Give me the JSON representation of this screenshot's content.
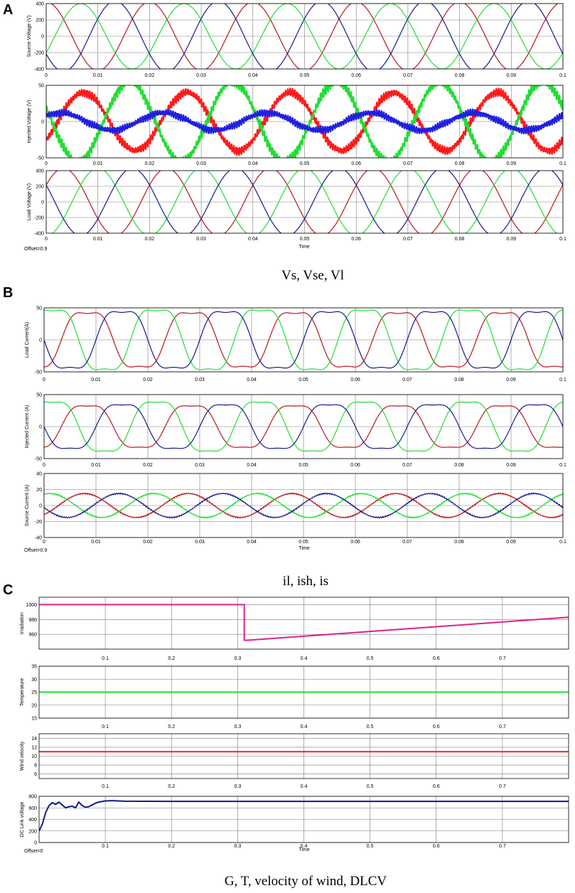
{
  "panels": [
    {
      "letter": "A",
      "caption": "Vs, Vse, Vl",
      "offset_label": "Offset=0.9",
      "xlabel": "Time"
    },
    {
      "letter": "B",
      "caption": "il, ish, is",
      "offset_label": "Offset=0.9",
      "xlabel": "Time"
    },
    {
      "letter": "C",
      "caption": "G, T, velocity of wind, DLCV",
      "offset_label": "Offset=0",
      "xlabel": "Time"
    }
  ],
  "colors": {
    "red": "#b8171c",
    "green": "#22dd33",
    "blue": "#141a8c",
    "magenta": "#e0218a",
    "bright_red": "#ff1a1a",
    "bright_blue": "#1f1fe0"
  },
  "chart_data": [
    {
      "type": "line",
      "ylabel": "Source Voltage (V)",
      "xlim": [
        0,
        0.1
      ],
      "ylim": [
        -400,
        400
      ],
      "yticks": [
        -400,
        -200,
        0,
        200,
        400
      ],
      "xticks": [
        0,
        0.01,
        0.02,
        0.03,
        0.04,
        0.05,
        0.06,
        0.07,
        0.08,
        0.09,
        0.1
      ],
      "series": [
        {
          "color": "red",
          "amplitude": 420,
          "frequency_hz": 50,
          "phase_deg": 90
        },
        {
          "color": "green",
          "amplitude": 400,
          "frequency_hz": 50,
          "phase_deg": -30
        },
        {
          "color": "blue",
          "amplitude": 430,
          "frequency_hz": 50,
          "phase_deg": 210
        }
      ]
    },
    {
      "type": "line",
      "ylabel": "Injected Voltage (V)",
      "xlim": [
        0,
        0.1
      ],
      "ylim": [
        -50,
        50
      ],
      "yticks": [
        -50,
        0,
        50
      ],
      "xticks": [
        0,
        0.01,
        0.02,
        0.03,
        0.04,
        0.05,
        0.06,
        0.07,
        0.08,
        0.09,
        0.1
      ],
      "series": [
        {
          "color": "bright_red",
          "amplitude": 40,
          "frequency_hz": 50,
          "phase_deg": -40,
          "ripple": 6
        },
        {
          "color": "green",
          "amplitude": 55,
          "frequency_hz": 50,
          "phase_deg": 160,
          "ripple": 7
        },
        {
          "color": "bright_blue",
          "amplitude": 12,
          "frequency_hz": 50,
          "phase_deg": 40,
          "ripple": 5
        }
      ]
    },
    {
      "type": "line",
      "ylabel": "Load Voltage (V)",
      "xlim": [
        0,
        0.1
      ],
      "ylim": [
        -400,
        400
      ],
      "yticks": [
        -400,
        -200,
        0,
        200,
        400
      ],
      "xticks": [
        0,
        0.01,
        0.02,
        0.03,
        0.04,
        0.05,
        0.06,
        0.07,
        0.08,
        0.09,
        0.1
      ],
      "series": [
        {
          "color": "red",
          "amplitude": 430,
          "frequency_hz": 50,
          "phase_deg": 30
        },
        {
          "color": "green",
          "amplitude": 430,
          "frequency_hz": 50,
          "phase_deg": -90
        },
        {
          "color": "blue",
          "amplitude": 430,
          "frequency_hz": 50,
          "phase_deg": 150
        }
      ]
    },
    {
      "type": "line",
      "ylabel": "Load Current(A)",
      "xlim": [
        0,
        0.1
      ],
      "ylim": [
        -50,
        50
      ],
      "yticks": [
        -50,
        0,
        50
      ],
      "xticks": [
        0,
        0.01,
        0.02,
        0.03,
        0.04,
        0.05,
        0.06,
        0.07,
        0.08,
        0.09,
        0.1
      ],
      "series": [
        {
          "color": "red",
          "amplitude": 50,
          "frequency_hz": 50,
          "phase_deg": -60,
          "flatten": 0.45
        },
        {
          "color": "green",
          "amplitude": 55,
          "frequency_hz": 50,
          "phase_deg": 60,
          "flatten": 0.45
        },
        {
          "color": "blue",
          "amplitude": 52,
          "frequency_hz": 50,
          "phase_deg": 180,
          "flatten": 0.45
        }
      ]
    },
    {
      "type": "line",
      "ylabel": "Injected Current (A)",
      "xlim": [
        0,
        0.1
      ],
      "ylim": [
        -50,
        50
      ],
      "yticks": [
        -50,
        0,
        50
      ],
      "xticks": [
        0,
        0.01,
        0.02,
        0.03,
        0.04,
        0.05,
        0.06,
        0.07,
        0.08,
        0.09,
        0.1
      ],
      "series": [
        {
          "color": "red",
          "amplitude": 38,
          "frequency_hz": 50,
          "phase_deg": -60,
          "flatten": 0.4
        },
        {
          "color": "green",
          "amplitude": 45,
          "frequency_hz": 50,
          "phase_deg": 60,
          "flatten": 0.4
        },
        {
          "color": "blue",
          "amplitude": 40,
          "frequency_hz": 50,
          "phase_deg": 180,
          "flatten": 0.4
        }
      ]
    },
    {
      "type": "line",
      "ylabel": "Source Current (A)",
      "xlim": [
        0,
        0.1
      ],
      "ylim": [
        -40,
        40
      ],
      "yticks": [
        -40,
        -20,
        0,
        20,
        40
      ],
      "xticks": [
        0,
        0.01,
        0.02,
        0.03,
        0.04,
        0.05,
        0.06,
        0.07,
        0.08,
        0.09,
        0.1
      ],
      "series": [
        {
          "color": "red",
          "amplitude": 15,
          "frequency_hz": 50,
          "phase_deg": -50,
          "ripple": 1
        },
        {
          "color": "green",
          "amplitude": 15,
          "frequency_hz": 50,
          "phase_deg": 70,
          "ripple": 1
        },
        {
          "color": "blue",
          "amplitude": 15,
          "frequency_hz": 50,
          "phase_deg": 190,
          "ripple": 1
        }
      ]
    },
    {
      "type": "line",
      "ylabel": "Irradiation",
      "xlim": [
        0,
        0.8
      ],
      "ylim": [
        940,
        1010
      ],
      "yticks": [
        960,
        980,
        1000
      ],
      "xticks": [
        0.1,
        0.2,
        0.3,
        0.4,
        0.5,
        0.6,
        0.7
      ],
      "series": [
        {
          "color": "magenta",
          "x": [
            0,
            0.31,
            0.31,
            0.315,
            0.8
          ],
          "y": [
            1000,
            1000,
            952,
            952,
            983
          ]
        }
      ]
    },
    {
      "type": "line",
      "ylabel": "Temperature",
      "xlim": [
        0,
        0.8
      ],
      "ylim": [
        15,
        35
      ],
      "yticks": [
        15,
        20,
        25,
        30,
        35
      ],
      "xticks": [
        0.1,
        0.2,
        0.3,
        0.4,
        0.5,
        0.6,
        0.7
      ],
      "series": [
        {
          "color": "green",
          "x": [
            0,
            0.8
          ],
          "y": [
            25,
            25
          ]
        }
      ]
    },
    {
      "type": "line",
      "ylabel": "Wind velocity",
      "xlim": [
        0,
        0.8
      ],
      "ylim": [
        5,
        15
      ],
      "yticks": [
        6,
        8,
        10,
        12,
        14
      ],
      "xticks": [
        0.1,
        0.2,
        0.3,
        0.4,
        0.5,
        0.6,
        0.7
      ],
      "series": [
        {
          "color": "bright_red",
          "x": [
            0,
            0.8
          ],
          "y": [
            11,
            11
          ]
        }
      ]
    },
    {
      "type": "line",
      "ylabel": "DC Link voltage",
      "xlim": [
        0,
        0.8
      ],
      "ylim": [
        0,
        800
      ],
      "yticks": [
        0,
        200,
        400,
        600,
        800
      ],
      "xticks": [
        0.1,
        0.2,
        0.3,
        0.4,
        0.5,
        0.6,
        0.7
      ],
      "series": [
        {
          "color": "blue",
          "x": [
            0,
            0.005,
            0.01,
            0.015,
            0.02,
            0.025,
            0.03,
            0.035,
            0.04,
            0.045,
            0.05,
            0.055,
            0.06,
            0.065,
            0.07,
            0.075,
            0.08,
            0.085,
            0.09,
            0.1,
            0.11,
            0.12,
            0.13,
            0.2,
            0.3,
            0.4,
            0.5,
            0.6,
            0.7,
            0.8
          ],
          "y": [
            200,
            320,
            520,
            640,
            690,
            660,
            700,
            650,
            600,
            620,
            630,
            600,
            700,
            640,
            610,
            620,
            650,
            680,
            700,
            720,
            725,
            720,
            715,
            712,
            712,
            712,
            712,
            712,
            712,
            712
          ]
        }
      ]
    }
  ]
}
